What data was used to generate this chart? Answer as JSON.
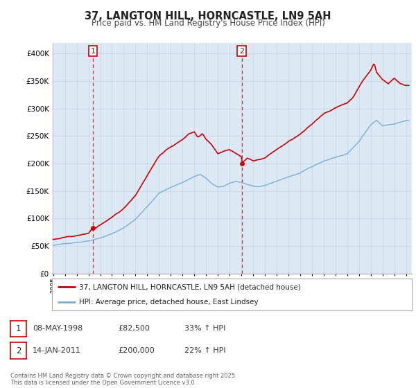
{
  "title": "37, LANGTON HILL, HORNCASTLE, LN9 5AH",
  "subtitle": "Price paid vs. HM Land Registry's House Price Index (HPI)",
  "legend_line1": "37, LANGTON HILL, HORNCASTLE, LN9 5AH (detached house)",
  "legend_line2": "HPI: Average price, detached house, East Lindsey",
  "footer": "Contains HM Land Registry data © Crown copyright and database right 2025.\nThis data is licensed under the Open Government Licence v3.0.",
  "annotation1_date": "08-MAY-1998",
  "annotation1_price": "£82,500",
  "annotation1_hpi": "33% ↑ HPI",
  "annotation2_date": "14-JAN-2011",
  "annotation2_price": "£200,000",
  "annotation2_hpi": "22% ↑ HPI",
  "red_color": "#cc0000",
  "blue_color": "#7aaed6",
  "bg_fill_color": "#dce9f5",
  "vline_color": "#cc0000",
  "bg_color": "#ffffff",
  "grid_color": "#c8d8e8",
  "ylim": [
    0,
    420000
  ],
  "yticks": [
    0,
    50000,
    100000,
    150000,
    200000,
    250000,
    300000,
    350000,
    400000
  ],
  "sale1_year": 1998.37,
  "sale1_price": 82500,
  "sale2_year": 2011.04,
  "sale2_price": 200000,
  "xmin": 1995.0,
  "xmax": 2025.5
}
